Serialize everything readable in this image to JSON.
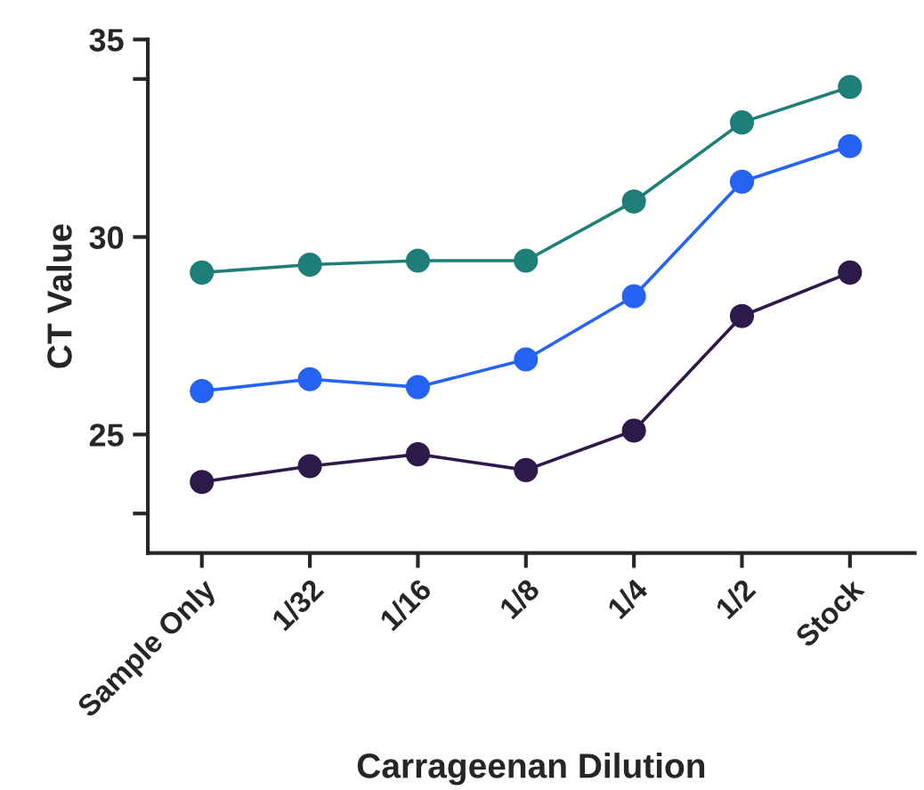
{
  "chart_data": {
    "type": "line",
    "xlabel": "Carrageenan Dilution",
    "ylabel": "CT Value",
    "categories": [
      "Sample Only",
      "1/32",
      "1/16",
      "1/8",
      "1/4",
      "1/2",
      "Stock"
    ],
    "series": [
      {
        "color": "#1e7f78",
        "values": [
          29.1,
          29.3,
          29.4,
          29.4,
          30.9,
          32.9,
          33.8
        ]
      },
      {
        "color": "#2563f5",
        "values": [
          26.1,
          26.4,
          26.2,
          26.9,
          28.5,
          31.4,
          32.3
        ]
      },
      {
        "color": "#2e1a4a",
        "values": [
          23.8,
          24.2,
          24.5,
          24.1,
          25.1,
          28.0,
          29.1
        ]
      }
    ],
    "ylim": [
      22,
      35
    ],
    "yticks": [
      {
        "value": 23,
        "label": null
      },
      25,
      30,
      {
        "value": 34,
        "label": null
      },
      35
    ],
    "marker": "circle",
    "line_style": "solid"
  }
}
